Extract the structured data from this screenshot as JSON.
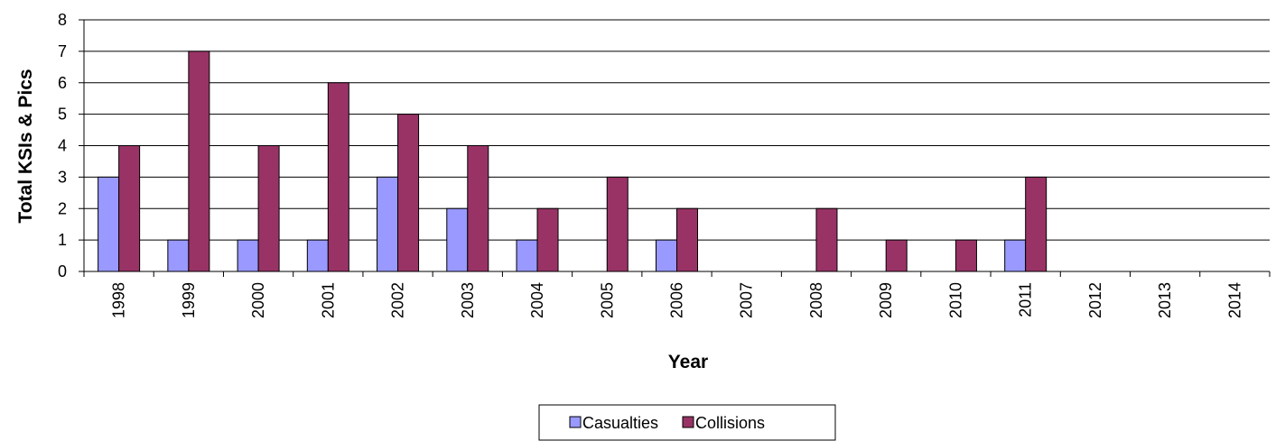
{
  "chart_data": {
    "type": "bar",
    "categories": [
      "1998",
      "1999",
      "2000",
      "2001",
      "2002",
      "2003",
      "2004",
      "2005",
      "2006",
      "2007",
      "2008",
      "2009",
      "2010",
      "2011",
      "2012",
      "2013",
      "2014"
    ],
    "series": [
      {
        "name": "Casualties",
        "color": "#9999ff",
        "values": [
          3,
          1,
          1,
          1,
          3,
          2,
          1,
          0,
          1,
          0,
          0,
          0,
          0,
          1,
          0,
          0,
          0
        ]
      },
      {
        "name": "Collisions",
        "color": "#993366",
        "values": [
          4,
          7,
          4,
          6,
          5,
          4,
          2,
          3,
          2,
          0,
          2,
          1,
          1,
          3,
          0,
          0,
          0
        ]
      }
    ],
    "xlabel": "Year",
    "ylabel": "Total KSIs  & Pics",
    "ylim": [
      0,
      8
    ],
    "yticks": [
      0,
      1,
      2,
      3,
      4,
      5,
      6,
      7,
      8
    ],
    "grid": true,
    "legend_position": "bottom"
  }
}
